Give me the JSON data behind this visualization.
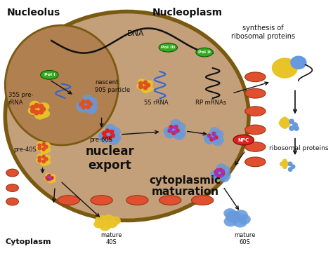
{
  "bg_color": "#ffffff",
  "nucleus_color": "#c4a07a",
  "nucleus_border": "#7a5a10",
  "nucleolus_color": "#b08050",
  "arrow_color": "#111111",
  "green_color": "#33aa22",
  "red_oval_color": "#e05030",
  "npc_color": "#dd3322",
  "labels": {
    "nucleolus": "Nucleolus",
    "nucleoplasm": "Nucleoplasm",
    "dna": "DNA",
    "pol1": "Pol I",
    "pol2": "Pol II",
    "pol3": "Pol III",
    "pre_rrna": "35S pre-\nrRNA",
    "nascent": "nascent\n90S particle",
    "pre60s": "pre-60S",
    "pre40s": "pre-40S",
    "five_s": "5S rRNA",
    "rp_mrnas": "RP mRNAs",
    "nuclear_export": "nuclear\nexport",
    "cytoplasm": "Cytoplasm",
    "cytoplasmic": "cytoplasmic\nmaturation",
    "mature40s": "mature\n40S",
    "mature60s": "mature\n60S",
    "npc": "NPC",
    "synthesis": "synthesis of\nribosomal proteins",
    "ribosomal": "ribosomal proteins"
  },
  "figsize": [
    4.74,
    3.68
  ],
  "dpi": 100
}
